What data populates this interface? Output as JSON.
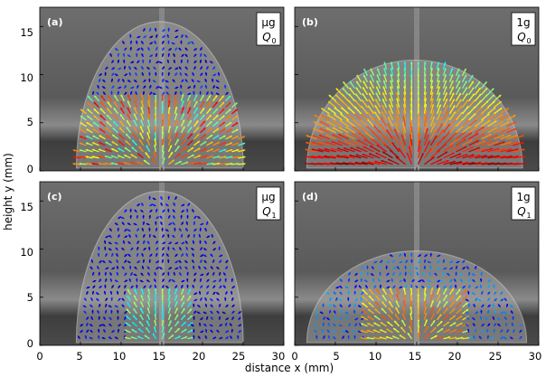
{
  "figure": {
    "y_axis_label": "height y (mm)",
    "x_axis_label": "distance x (mm)",
    "x_ticks": [
      "0",
      "5",
      "10",
      "15",
      "20",
      "25",
      "30"
    ],
    "y_ticks": [
      "0",
      "5",
      "10",
      "15"
    ],
    "x_range": [
      0,
      30
    ],
    "y_range": [
      0,
      17
    ],
    "panels": [
      {
        "id": "a",
        "label": "(a)",
        "gravity": "μg",
        "flow": "Q",
        "flow_sub": "0",
        "dome_height": 15.5,
        "dome_left": 4.5,
        "dome_right": 25.0,
        "intensity": "mixed"
      },
      {
        "id": "b",
        "label": "(b)",
        "gravity": "1g",
        "flow": "Q",
        "flow_sub": "0",
        "dome_height": 11.5,
        "dome_left": 1.5,
        "dome_right": 28.0,
        "intensity": "high"
      },
      {
        "id": "c",
        "label": "(c)",
        "gravity": "μg",
        "flow": "Q",
        "flow_sub": "1",
        "dome_height": 16.0,
        "dome_left": 4.5,
        "dome_right": 25.0,
        "intensity": "low"
      },
      {
        "id": "d",
        "label": "(d)",
        "gravity": "1g",
        "flow": "Q",
        "flow_sub": "1",
        "dome_height": 9.8,
        "dome_left": 1.5,
        "dome_right": 28.5,
        "intensity": "medium"
      }
    ]
  }
}
